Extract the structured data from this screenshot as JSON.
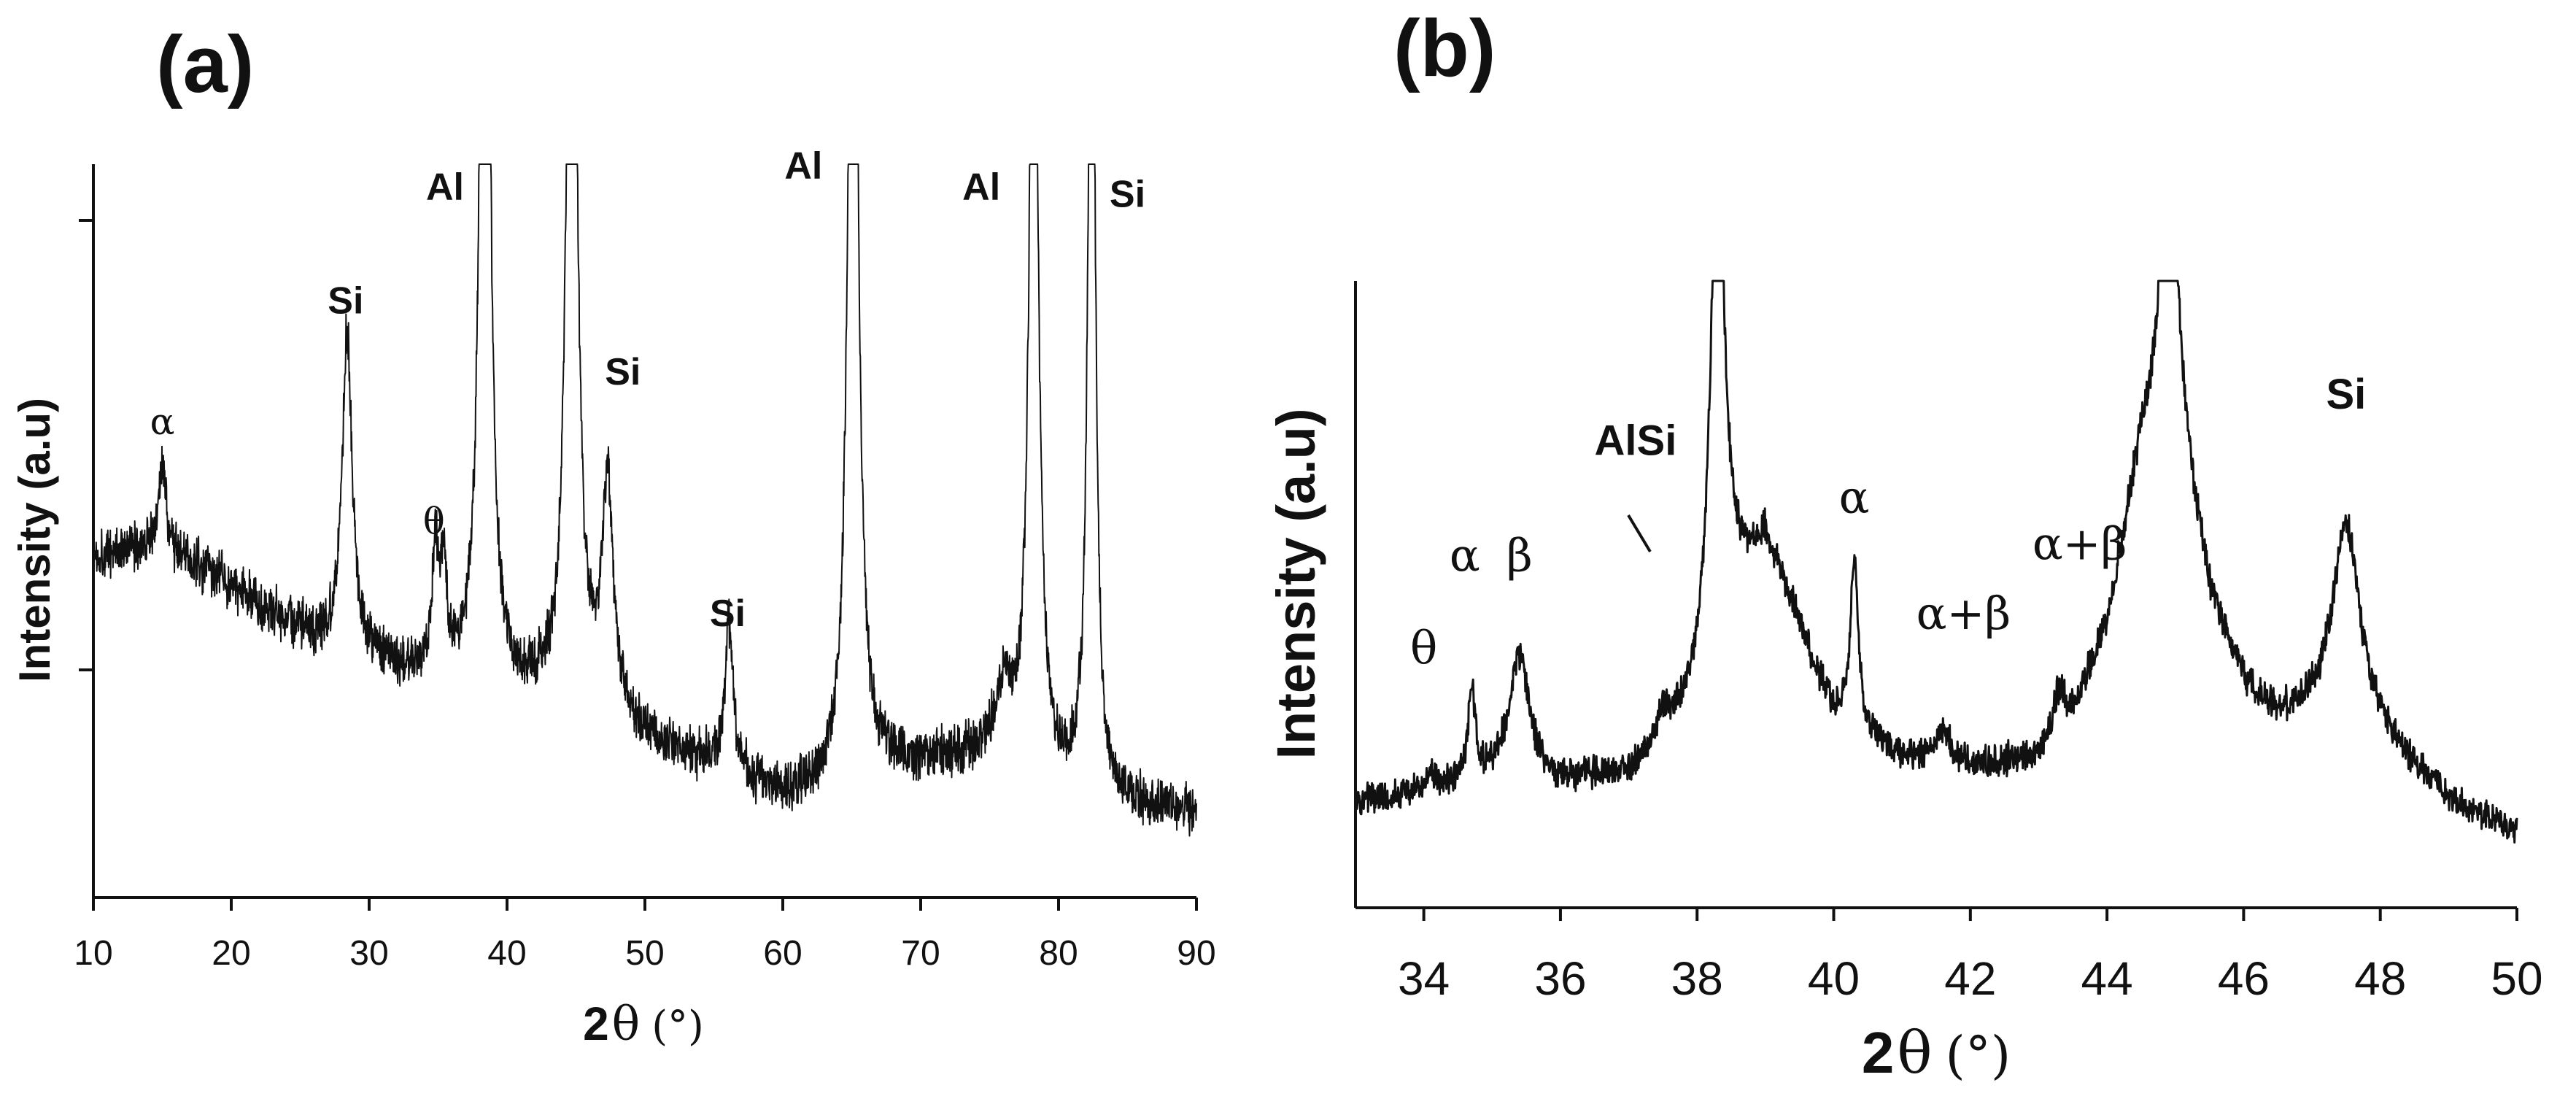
{
  "chart_data": [
    {
      "panel": "(a)",
      "type": "line",
      "xlabel_prefix": "2",
      "xlabel_symbol": "θ",
      "xlabel_unit": "(°)",
      "ylabel": "Intensity (a.u)",
      "xlim": [
        10,
        90
      ],
      "x_ticks": [
        10,
        20,
        30,
        40,
        50,
        60,
        70,
        80,
        90
      ],
      "background_points": [
        [
          10,
          0.4
        ],
        [
          14,
          0.41
        ],
        [
          18,
          0.38
        ],
        [
          22,
          0.33
        ],
        [
          26,
          0.28
        ],
        [
          30,
          0.25
        ],
        [
          34,
          0.23
        ],
        [
          40,
          0.21
        ],
        [
          46,
          0.18
        ],
        [
          50,
          0.14
        ],
        [
          55,
          0.1
        ],
        [
          60,
          0.06
        ],
        [
          64,
          0.07
        ],
        [
          68,
          0.1
        ],
        [
          72,
          0.11
        ],
        [
          76,
          0.12
        ],
        [
          80,
          0.08
        ],
        [
          84,
          0.05
        ],
        [
          90,
          0.04
        ]
      ],
      "peaks": [
        {
          "x": 15.0,
          "h": 0.12,
          "w": 0.35
        },
        {
          "x": 28.4,
          "h": 0.45,
          "w": 0.45
        },
        {
          "x": 34.8,
          "h": 0.18,
          "w": 0.25
        },
        {
          "x": 35.4,
          "h": 0.15,
          "w": 0.25
        },
        {
          "x": 38.4,
          "h": 1.8,
          "w": 0.35
        },
        {
          "x": 44.7,
          "h": 1.5,
          "w": 0.4
        },
        {
          "x": 47.3,
          "h": 0.32,
          "w": 0.5
        },
        {
          "x": 56.1,
          "h": 0.21,
          "w": 0.35
        },
        {
          "x": 65.1,
          "h": 1.6,
          "w": 0.4
        },
        {
          "x": 76.0,
          "h": 0.08,
          "w": 0.7
        },
        {
          "x": 78.2,
          "h": 1.4,
          "w": 0.35
        },
        {
          "x": 82.4,
          "h": 1.4,
          "w": 0.3
        }
      ],
      "ylim": [
        0.0,
        0.95
      ],
      "annotations": [
        {
          "text": "α",
          "x": 15.0,
          "y": 0.57,
          "style": "serif"
        },
        {
          "text": "Si",
          "x": 28.3,
          "y": 0.74,
          "style": "sans"
        },
        {
          "text": "θ",
          "x": 34.7,
          "y": 0.43,
          "style": "serif"
        },
        {
          "text": "Al",
          "x": 35.5,
          "y": 0.9,
          "style": "sans"
        },
        {
          "text": "Si",
          "x": 48.4,
          "y": 0.64,
          "style": "sans"
        },
        {
          "text": "Si",
          "x": 56.0,
          "y": 0.3,
          "style": "sans"
        },
        {
          "text": "Al",
          "x": 61.5,
          "y": 0.93,
          "style": "sans"
        },
        {
          "text": "Al",
          "x": 74.4,
          "y": 0.9,
          "style": "sans"
        },
        {
          "text": "Si",
          "x": 85.0,
          "y": 0.89,
          "style": "sans"
        }
      ]
    },
    {
      "panel": "(b)",
      "type": "line",
      "xlabel_prefix": "2",
      "xlabel_symbol": "θ",
      "xlabel_unit": "(°)",
      "ylabel": "Intensity (a.u)",
      "xlim": [
        33,
        50
      ],
      "x_ticks": [
        34,
        36,
        38,
        40,
        42,
        44,
        46,
        48,
        50
      ],
      "background_points": [
        [
          33,
          0.1
        ],
        [
          34,
          0.12
        ],
        [
          35,
          0.14
        ],
        [
          36,
          0.13
        ],
        [
          37,
          0.15
        ],
        [
          37.5,
          0.2
        ],
        [
          38,
          0.28
        ],
        [
          38.5,
          0.45
        ],
        [
          39,
          0.55
        ],
        [
          39.5,
          0.4
        ],
        [
          40,
          0.25
        ],
        [
          41,
          0.18
        ],
        [
          42,
          0.16
        ],
        [
          43,
          0.18
        ],
        [
          43.5,
          0.25
        ],
        [
          44,
          0.4
        ],
        [
          44.5,
          0.7
        ],
        [
          45,
          0.75
        ],
        [
          45.5,
          0.45
        ],
        [
          46,
          0.3
        ],
        [
          46.5,
          0.24
        ],
        [
          47,
          0.24
        ],
        [
          48,
          0.2
        ],
        [
          49,
          0.1
        ],
        [
          50,
          0.05
        ]
      ],
      "peaks": [
        {
          "x": 34.1,
          "h": 0.04,
          "w": 0.05
        },
        {
          "x": 34.7,
          "h": 0.16,
          "w": 0.06
        },
        {
          "x": 35.4,
          "h": 0.22,
          "w": 0.18
        },
        {
          "x": 37.5,
          "h": 0.05,
          "w": 0.1
        },
        {
          "x": 38.3,
          "h": 0.9,
          "w": 0.12
        },
        {
          "x": 40.3,
          "h": 0.28,
          "w": 0.07
        },
        {
          "x": 41.6,
          "h": 0.06,
          "w": 0.12
        },
        {
          "x": 43.3,
          "h": 0.07,
          "w": 0.1
        },
        {
          "x": 44.9,
          "h": 0.5,
          "w": 0.15
        },
        {
          "x": 47.5,
          "h": 0.36,
          "w": 0.25
        }
      ],
      "ylim": [
        0.0,
        1.0
      ],
      "annotations": [
        {
          "text": "θ",
          "x": 34.0,
          "y": 0.34,
          "style": "serif"
        },
        {
          "text": "α",
          "x": 34.6,
          "y": 0.5,
          "style": "serif"
        },
        {
          "text": "β",
          "x": 35.4,
          "y": 0.5,
          "style": "serif"
        },
        {
          "text": "AlSi",
          "x": 37.1,
          "y": 0.7,
          "style": "sans"
        },
        {
          "text": "α",
          "x": 40.3,
          "y": 0.6,
          "style": "serif"
        },
        {
          "text": "α+β",
          "x": 41.9,
          "y": 0.4,
          "style": "serif"
        },
        {
          "text": "α+β",
          "x": 43.6,
          "y": 0.52,
          "style": "serif"
        },
        {
          "text": "Si",
          "x": 47.5,
          "y": 0.78,
          "style": "sans"
        }
      ]
    }
  ]
}
